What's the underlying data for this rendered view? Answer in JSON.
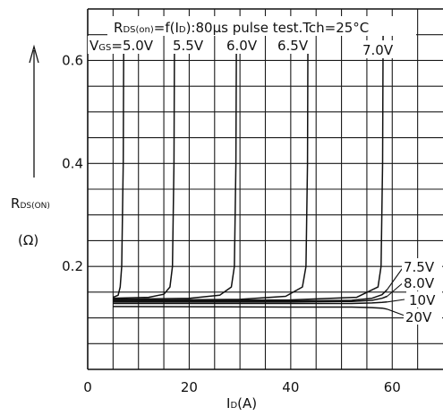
{
  "chart_data": {
    "type": "line",
    "title": "RDS(on)=f(ID):80μs pulse test.Tch=25°C",
    "title_main": "R",
    "title_sub": "DS(on)",
    "title_rest": "=f(I",
    "title_rest_sub": "D",
    "title_tail": "):80μs pulse test.Tch=25°C",
    "xlabel": "ID(A)",
    "xlabel_main": "I",
    "xlabel_sub": "D",
    "xlabel_unit": "(A)",
    "ylabel": "RDS(ON) (Ω)",
    "ylabel_main": "R",
    "ylabel_sub": "DS(ON)",
    "ylabel_unit": "(Ω)",
    "xlim": [
      0,
      70
    ],
    "ylim": [
      0,
      0.7
    ],
    "x_ticks": [
      {
        "value": 0,
        "label": "0"
      },
      {
        "value": 20,
        "label": "20"
      },
      {
        "value": 40,
        "label": "40"
      },
      {
        "value": 60,
        "label": "60"
      }
    ],
    "y_ticks": [
      {
        "value": 0.2,
        "label": "0.2"
      },
      {
        "value": 0.4,
        "label": "0.4"
      },
      {
        "value": 0.6,
        "label": "0.6"
      }
    ],
    "grid": true,
    "series": [
      {
        "name": "VGS=5.0V",
        "x": [
          5,
          6,
          6.4,
          6.7,
          7,
          7.1
        ],
        "y": [
          0.14,
          0.144,
          0.16,
          0.2,
          0.4,
          0.66
        ]
      },
      {
        "name": "5.5V",
        "x": [
          5,
          12,
          15,
          16.2,
          16.7,
          17,
          17.1
        ],
        "y": [
          0.138,
          0.14,
          0.146,
          0.16,
          0.2,
          0.4,
          0.66
        ]
      },
      {
        "name": "6.0V",
        "x": [
          5,
          20,
          26,
          28.3,
          28.9,
          29.2,
          29.3
        ],
        "y": [
          0.136,
          0.138,
          0.144,
          0.16,
          0.2,
          0.4,
          0.66
        ]
      },
      {
        "name": "6.5V",
        "x": [
          5,
          30,
          39,
          42.3,
          43,
          43.3,
          43.4
        ],
        "y": [
          0.134,
          0.136,
          0.142,
          0.16,
          0.2,
          0.4,
          0.66
        ]
      },
      {
        "name": "7.0V",
        "x": [
          5,
          40,
          53,
          57.2,
          57.8,
          58.1,
          58.2
        ],
        "y": [
          0.133,
          0.135,
          0.14,
          0.16,
          0.2,
          0.4,
          0.66
        ]
      },
      {
        "name": "7.5V",
        "x": [
          5,
          40,
          52,
          56,
          58,
          59
        ],
        "y": [
          0.132,
          0.133,
          0.134,
          0.138,
          0.145,
          0.155
        ]
      },
      {
        "name": "8.0V",
        "x": [
          5,
          40,
          52,
          56,
          58,
          59
        ],
        "y": [
          0.131,
          0.131,
          0.132,
          0.134,
          0.138,
          0.142
        ]
      },
      {
        "name": "10V",
        "x": [
          5,
          40,
          52,
          56,
          58,
          59
        ],
        "y": [
          0.128,
          0.128,
          0.128,
          0.129,
          0.13,
          0.131
        ]
      },
      {
        "name": "20V",
        "x": [
          5,
          40,
          52,
          56,
          58,
          59
        ],
        "y": [
          0.122,
          0.121,
          0.121,
          0.12,
          0.119,
          0.117
        ]
      }
    ],
    "labels": {
      "vgs_prefix": "V",
      "vgs_sub": "GS",
      "vgs_value": "=5.0V",
      "l55": "5.5V",
      "l60": "6.0V",
      "l65": "6.5V",
      "l70": "7.0V",
      "l75": "7.5V",
      "l80": "8.0V",
      "l10": "10V",
      "l20": "20V"
    }
  },
  "colors": {
    "ink": "#111111",
    "grid": "#1a1a1a",
    "background": "#ffffff"
  }
}
